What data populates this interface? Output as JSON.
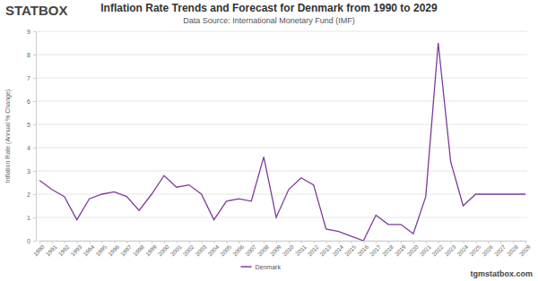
{
  "chart_data": {
    "type": "line",
    "title": "Inflation Rate Trends and Forecast for Denmark from 1990 to 2029",
    "subtitle": "Data Source: International Monetary Fund (IMF)",
    "y_label": "Inflation Rate (Annual % Change)",
    "annotations": [
      "STATBOX",
      "tgmstatbox.com"
    ],
    "categories": [
      "1990",
      "1991",
      "1992",
      "1993",
      "1994",
      "1995",
      "1996",
      "1997",
      "1998",
      "1999",
      "2000",
      "2001",
      "2002",
      "2003",
      "2004",
      "2005",
      "2006",
      "2007",
      "2008",
      "2009",
      "2010",
      "2011",
      "2012",
      "2013",
      "2014",
      "2015",
      "2016",
      "2017",
      "2018",
      "2019",
      "2020",
      "2021",
      "2022",
      "2023",
      "2024",
      "2025",
      "2026",
      "2027",
      "2028",
      "2029"
    ],
    "series": [
      {
        "name": "Denmark",
        "color": "#7d3c98",
        "values": [
          2.6,
          2.2,
          1.9,
          0.9,
          1.8,
          2.0,
          2.1,
          1.9,
          1.3,
          2.0,
          2.8,
          2.3,
          2.4,
          2.0,
          0.9,
          1.7,
          1.8,
          1.7,
          3.6,
          1.0,
          2.2,
          2.7,
          2.4,
          0.5,
          0.4,
          0.2,
          0.0,
          1.1,
          0.7,
          0.7,
          0.3,
          1.9,
          8.5,
          3.4,
          1.5,
          2.0,
          2.0,
          2.0,
          2.0,
          2.0
        ]
      }
    ],
    "ylim": [
      0,
      9
    ],
    "yticks": [
      0,
      1,
      2,
      3,
      4,
      5,
      6,
      7,
      8,
      9
    ],
    "grid": true,
    "legend": "bottom"
  }
}
